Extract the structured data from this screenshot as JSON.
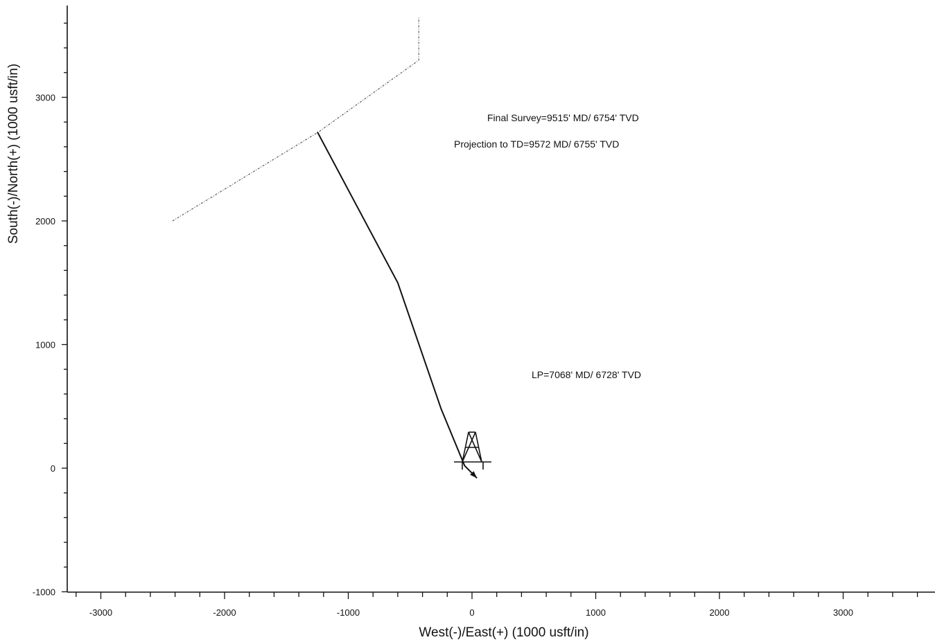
{
  "chart_data": {
    "type": "line",
    "xlabel": "West(-)/East(+) (1000 usft/in)",
    "ylabel": "South(-)/North(+) (1000 usft/in)",
    "xlim": [
      -3300,
      3750
    ],
    "ylim": [
      -1000,
      3650
    ],
    "xticks": [
      -3000,
      -2000,
      -1000,
      0,
      1000,
      2000,
      3000
    ],
    "yticks": [
      -1000,
      0,
      1000,
      2000,
      3000
    ],
    "xtick_labels": [
      "-3000",
      "-2000",
      "-1000",
      "0",
      "1000",
      "2000",
      "3000"
    ],
    "ytick_labels": [
      "-1000",
      "0",
      "1000",
      "2000",
      "3000"
    ],
    "series": [
      {
        "x": [
          -2420,
          -1240,
          -430,
          -430
        ],
        "y": [
          2000,
          2720,
          3300,
          3650
        ]
      },
      {
        "x": [
          40,
          -60,
          -250,
          -600,
          -1250
        ],
        "y": [
          -80,
          20,
          480,
          1500,
          2720
        ]
      }
    ],
    "surface_location": {
      "x": 0,
      "y": 0
    },
    "annotations": [
      {
        "text": "Final Survey=9515' MD/ 6754' TVD"
      },
      {
        "text": "Projection to TD=9572  MD/ 6755' TVD"
      },
      {
        "text": "LP=7068' MD/ 6728' TVD"
      }
    ],
    "grid": false,
    "legend": "none"
  }
}
